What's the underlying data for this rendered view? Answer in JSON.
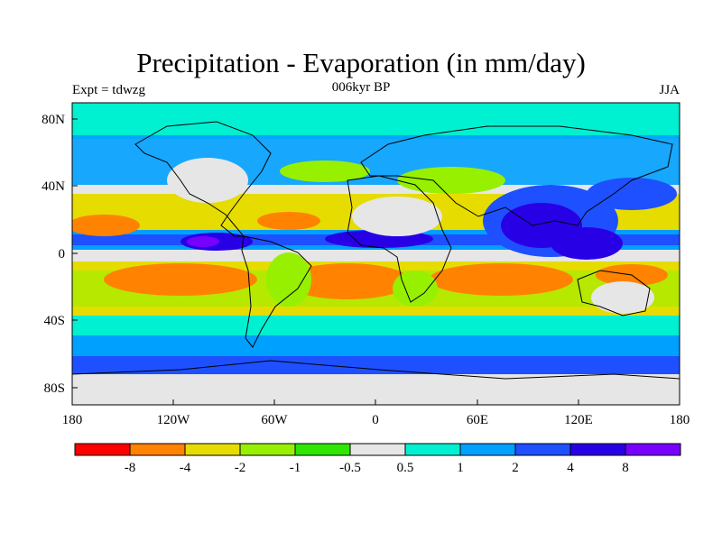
{
  "title": "Precipitation - Evaporation (in mm/day)",
  "left_label": "Expt = tdwzg",
  "center_label": "006kyr BP",
  "right_label": "JJA",
  "lat_ticks": [
    "80N",
    "40N",
    "0",
    "40S",
    "80S"
  ],
  "lon_ticks": [
    "180",
    "120W",
    "60W",
    "0",
    "60E",
    "120E",
    "180"
  ],
  "colorbar": {
    "colors": [
      "#ff0000",
      "#ff8200",
      "#e6dc00",
      "#96f000",
      "#2ee600",
      "#e6e6e6",
      "#00f0d2",
      "#00a0ff",
      "#1e50ff",
      "#2800e6",
      "#7800ff"
    ],
    "labels": [
      "-8",
      "-4",
      "-2",
      "-1",
      "-0.5",
      "0.5",
      "1",
      "2",
      "4",
      "8"
    ]
  }
}
